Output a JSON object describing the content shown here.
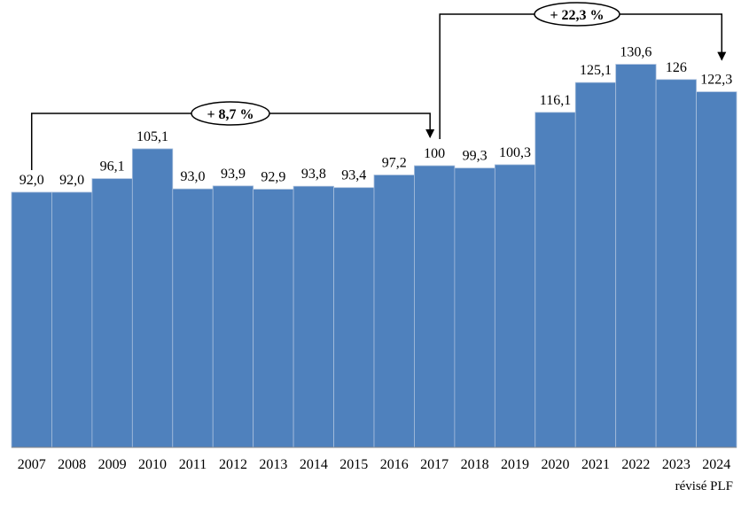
{
  "chart_data": {
    "type": "bar",
    "categories": [
      "2007",
      "2008",
      "2009",
      "2010",
      "2011",
      "2012",
      "2013",
      "2014",
      "2015",
      "2016",
      "2017",
      "2018",
      "2019",
      "2020",
      "2021",
      "2022",
      "2023",
      "2024"
    ],
    "values": [
      92.0,
      92.0,
      96.1,
      105.1,
      93.0,
      93.9,
      92.9,
      93.8,
      93.4,
      97.2,
      100,
      99.3,
      100.3,
      116.1,
      125.1,
      130.6,
      126,
      122.3
    ],
    "value_labels": [
      "92,0",
      "92,0",
      "96,1",
      "105,1",
      "93,0",
      "93,9",
      "92,9",
      "93,8",
      "93,4",
      "97,2",
      "100",
      "99,3",
      "100,3",
      "116,1",
      "125,1",
      "130,6",
      "126",
      "122,3"
    ],
    "color": "#4f81bd",
    "ylim": [
      15,
      150
    ],
    "x_note": "révisé PLF",
    "annotations": [
      "+ 8,7 %",
      "+ 22,3 %"
    ]
  }
}
